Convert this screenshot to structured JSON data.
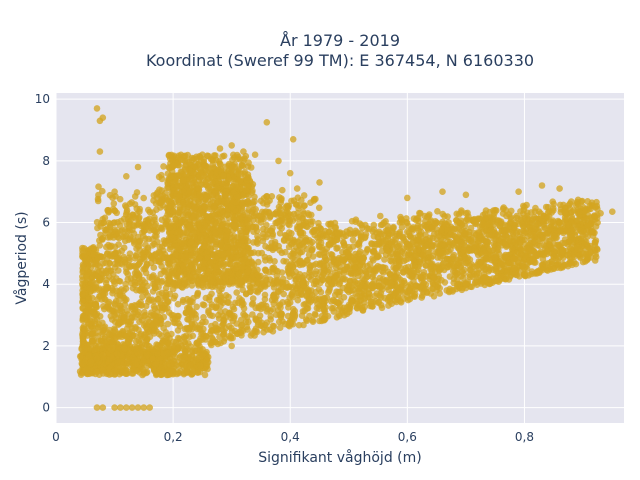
{
  "chart_data": {
    "type": "scatter",
    "title_line1": "År 1979 - 2019",
    "title_line2": "Koordinat (Sweref 99 TM): E 367454, N 6160330",
    "xlabel": "Signifikant våghöjd (m)",
    "ylabel": "Vågperiod (s)",
    "xlim": [
      0,
      0.97
    ],
    "ylim": [
      -0.5,
      10.2
    ],
    "x_ticks": [
      0,
      0.2,
      0.4,
      0.6,
      0.8
    ],
    "x_tick_labels": [
      "0",
      "0,2",
      "0,4",
      "0,6",
      "0,8"
    ],
    "y_ticks": [
      0,
      2,
      4,
      6,
      8,
      10
    ],
    "y_tick_labels": [
      "0",
      "2",
      "4",
      "6",
      "8",
      "10"
    ],
    "grid": true,
    "colors": {
      "marker": "#D4A521",
      "plot_bg": "#E5E5EF",
      "grid": "#ffffff",
      "text": "#2a3f5f"
    },
    "points": [
      [
        0.07,
        9.7
      ],
      [
        0.075,
        9.3
      ],
      [
        0.08,
        9.4
      ],
      [
        0.075,
        8.3
      ],
      [
        0.36,
        9.25
      ],
      [
        0.405,
        8.7
      ],
      [
        0.07,
        0
      ],
      [
        0.08,
        0
      ],
      [
        0.1,
        0
      ],
      [
        0.11,
        0
      ],
      [
        0.12,
        0
      ],
      [
        0.13,
        0
      ],
      [
        0.14,
        0
      ],
      [
        0.15,
        0
      ],
      [
        0.16,
        0
      ],
      [
        0.045,
        1.4
      ],
      [
        0.05,
        1.5
      ],
      [
        0.06,
        1.5
      ],
      [
        0.07,
        1.6
      ],
      [
        0.08,
        1.7
      ],
      [
        0.1,
        1.2
      ],
      [
        0.12,
        1.1
      ],
      [
        0.15,
        1.1
      ],
      [
        0.18,
        1.3
      ],
      [
        0.2,
        1.5
      ],
      [
        0.22,
        1.6
      ],
      [
        0.25,
        1.7
      ],
      [
        0.3,
        2.0
      ],
      [
        0.08,
        2.5
      ],
      [
        0.1,
        3.0
      ],
      [
        0.12,
        3.5
      ],
      [
        0.1,
        4.0
      ],
      [
        0.12,
        4.5
      ],
      [
        0.1,
        5.0
      ],
      [
        0.08,
        5.5
      ],
      [
        0.1,
        6.0
      ],
      [
        0.12,
        6.5
      ],
      [
        0.1,
        7.0
      ],
      [
        0.12,
        7.5
      ],
      [
        0.14,
        7.8
      ],
      [
        0.2,
        7.5
      ],
      [
        0.22,
        8.0
      ],
      [
        0.25,
        8.2
      ],
      [
        0.28,
        8.4
      ],
      [
        0.3,
        8.5
      ],
      [
        0.32,
        8.3
      ],
      [
        0.34,
        8.2
      ],
      [
        0.38,
        8.0
      ],
      [
        0.4,
        7.6
      ],
      [
        0.45,
        7.3
      ],
      [
        0.2,
        5.5
      ],
      [
        0.25,
        6.0
      ],
      [
        0.3,
        6.5
      ],
      [
        0.35,
        6.0
      ],
      [
        0.4,
        5.5
      ],
      [
        0.45,
        5.2
      ],
      [
        0.5,
        5.2
      ],
      [
        0.55,
        5.5
      ],
      [
        0.6,
        5.7
      ],
      [
        0.65,
        6.0
      ],
      [
        0.7,
        6.3
      ],
      [
        0.75,
        6.4
      ],
      [
        0.8,
        6.5
      ],
      [
        0.85,
        6.6
      ],
      [
        0.9,
        6.5
      ],
      [
        0.93,
        6.3
      ],
      [
        0.95,
        6.35
      ],
      [
        0.3,
        3.0
      ],
      [
        0.35,
        3.2
      ],
      [
        0.4,
        3.4
      ],
      [
        0.45,
        3.3
      ],
      [
        0.5,
        3.2
      ],
      [
        0.55,
        3.4
      ],
      [
        0.6,
        3.6
      ],
      [
        0.65,
        3.8
      ],
      [
        0.7,
        4.0
      ],
      [
        0.75,
        4.1
      ],
      [
        0.8,
        4.3
      ],
      [
        0.85,
        4.5
      ],
      [
        0.9,
        5.0
      ],
      [
        0.6,
        6.8
      ],
      [
        0.66,
        7.0
      ],
      [
        0.7,
        6.9
      ],
      [
        0.79,
        7.0
      ],
      [
        0.83,
        7.2
      ],
      [
        0.86,
        7.1
      ]
    ]
  }
}
